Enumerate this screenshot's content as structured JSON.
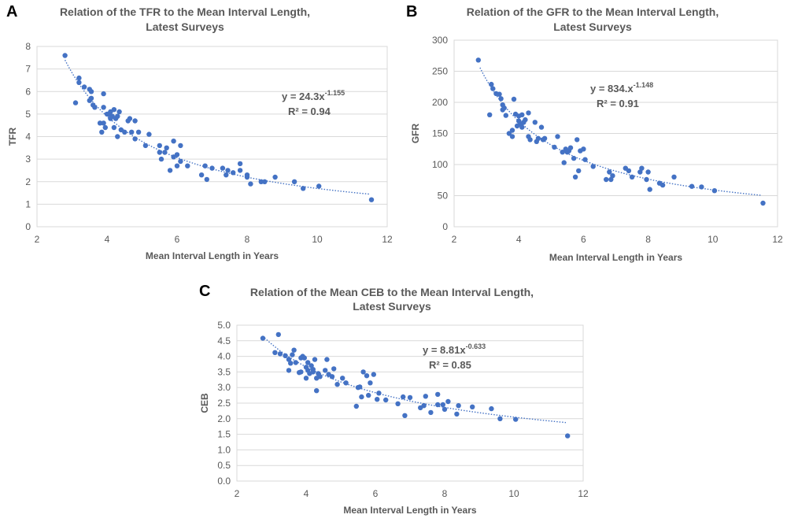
{
  "colors": {
    "marker": "#4472c4",
    "trendline": "#4472c4",
    "grid": "#d9d9d9",
    "text": "#595959"
  },
  "panels": [
    {
      "letter": "A",
      "title_line1": "Relation of the TFR to the Mean Interval Length,",
      "title_line2": "Latest Surveys",
      "xlabel": "Mean Interval Length in Years",
      "ylabel": "TFR",
      "equation": "y = 24.3x",
      "exponent": "-1.155",
      "r2": "R² = 0.94"
    },
    {
      "letter": "B",
      "title_line1": "Relation of the GFR to the Mean Interval Length,",
      "title_line2": "Latest Surveys",
      "xlabel": "Mean Interval Length in Years",
      "ylabel": "GFR",
      "equation": "y = 834.x",
      "exponent": "-1.148",
      "r2": "R² = 0.91"
    },
    {
      "letter": "C",
      "title_line1": "Relation of the Mean CEB to the Mean Interval Length,",
      "title_line2": "Latest Surveys",
      "xlabel": "Mean Interval Length in Years",
      "ylabel": "CEB",
      "equation": "y = 8.81x",
      "exponent": "-0.633",
      "r2": "R² = 0.85"
    }
  ],
  "chart_data": [
    {
      "type": "scatter",
      "title": "Relation of the TFR to the Mean Interval Length, Latest Surveys",
      "xlabel": "Mean Interval Length in Years",
      "ylabel": "TFR",
      "xlim": [
        2,
        12
      ],
      "ylim": [
        0,
        8
      ],
      "xticks": [
        2,
        4,
        6,
        8,
        10,
        12
      ],
      "yticks": [
        0,
        1,
        2,
        3,
        4,
        5,
        6,
        7,
        8
      ],
      "grid": true,
      "trendline": {
        "type": "power",
        "a": 24.3,
        "b": -1.155,
        "x_range": [
          2.8,
          11.5
        ],
        "style": "dotted"
      },
      "annotation": "y = 24.3x-1.155  R² = 0.94",
      "points": [
        [
          2.8,
          7.6
        ],
        [
          3.1,
          5.5
        ],
        [
          3.2,
          6.4
        ],
        [
          3.2,
          6.6
        ],
        [
          3.35,
          6.2
        ],
        [
          3.5,
          6.1
        ],
        [
          3.5,
          5.6
        ],
        [
          3.55,
          6.0
        ],
        [
          3.55,
          5.7
        ],
        [
          3.6,
          5.4
        ],
        [
          3.65,
          5.3
        ],
        [
          3.8,
          4.6
        ],
        [
          3.85,
          4.2
        ],
        [
          3.9,
          4.6
        ],
        [
          3.9,
          5.9
        ],
        [
          3.9,
          5.3
        ],
        [
          3.95,
          4.4
        ],
        [
          4.0,
          5.0
        ],
        [
          4.05,
          5.0
        ],
        [
          4.1,
          4.8
        ],
        [
          4.1,
          5.1
        ],
        [
          4.15,
          4.9
        ],
        [
          4.2,
          4.4
        ],
        [
          4.2,
          5.2
        ],
        [
          4.25,
          4.8
        ],
        [
          4.3,
          4.0
        ],
        [
          4.3,
          4.9
        ],
        [
          4.35,
          5.1
        ],
        [
          4.4,
          4.3
        ],
        [
          4.5,
          4.2
        ],
        [
          4.6,
          4.7
        ],
        [
          4.65,
          4.8
        ],
        [
          4.7,
          4.2
        ],
        [
          4.8,
          4.7
        ],
        [
          4.8,
          3.9
        ],
        [
          4.9,
          4.2
        ],
        [
          5.1,
          3.6
        ],
        [
          5.2,
          4.1
        ],
        [
          5.5,
          3.6
        ],
        [
          5.5,
          3.3
        ],
        [
          5.55,
          3.0
        ],
        [
          5.65,
          3.3
        ],
        [
          5.7,
          3.5
        ],
        [
          5.8,
          2.5
        ],
        [
          5.9,
          3.8
        ],
        [
          5.9,
          3.1
        ],
        [
          6.0,
          2.7
        ],
        [
          6.0,
          3.2
        ],
        [
          6.1,
          3.6
        ],
        [
          6.1,
          2.9
        ],
        [
          6.3,
          2.7
        ],
        [
          6.7,
          2.3
        ],
        [
          6.8,
          2.7
        ],
        [
          6.85,
          2.1
        ],
        [
          7.0,
          2.6
        ],
        [
          7.3,
          2.6
        ],
        [
          7.4,
          2.3
        ],
        [
          7.45,
          2.5
        ],
        [
          7.6,
          2.4
        ],
        [
          7.8,
          2.5
        ],
        [
          7.8,
          2.8
        ],
        [
          8.0,
          2.2
        ],
        [
          8.0,
          2.3
        ],
        [
          8.1,
          1.9
        ],
        [
          8.4,
          2.0
        ],
        [
          8.5,
          2.0
        ],
        [
          8.8,
          2.2
        ],
        [
          9.35,
          2.0
        ],
        [
          9.6,
          1.7
        ],
        [
          10.05,
          1.8
        ],
        [
          11.55,
          1.2
        ]
      ]
    },
    {
      "type": "scatter",
      "title": "Relation of the GFR to the Mean Interval Length, Latest Surveys",
      "xlabel": "Mean Interval Length in Years",
      "ylabel": "GFR",
      "xlim": [
        2,
        12
      ],
      "ylim": [
        0,
        300
      ],
      "xticks": [
        2,
        4,
        6,
        8,
        10,
        12
      ],
      "yticks": [
        0,
        50,
        100,
        150,
        200,
        250,
        300
      ],
      "grid": true,
      "trendline": {
        "type": "power",
        "a": 834,
        "b": -1.148,
        "x_range": [
          2.8,
          11.5
        ],
        "style": "dotted"
      },
      "annotation": "y = 834.x-1.148  R² = 0.91",
      "points": [
        [
          2.75,
          268
        ],
        [
          3.1,
          180
        ],
        [
          3.15,
          229
        ],
        [
          3.2,
          222
        ],
        [
          3.3,
          214
        ],
        [
          3.4,
          213
        ],
        [
          3.45,
          206
        ],
        [
          3.5,
          188
        ],
        [
          3.5,
          196
        ],
        [
          3.55,
          191
        ],
        [
          3.6,
          179
        ],
        [
          3.7,
          150
        ],
        [
          3.8,
          155
        ],
        [
          3.8,
          145
        ],
        [
          3.85,
          205
        ],
        [
          3.9,
          181
        ],
        [
          3.95,
          162
        ],
        [
          4.0,
          170
        ],
        [
          4.0,
          178
        ],
        [
          4.05,
          165
        ],
        [
          4.1,
          160
        ],
        [
          4.1,
          180
        ],
        [
          4.15,
          168
        ],
        [
          4.2,
          172
        ],
        [
          4.3,
          145
        ],
        [
          4.3,
          183
        ],
        [
          4.35,
          140
        ],
        [
          4.5,
          168
        ],
        [
          4.55,
          137
        ],
        [
          4.6,
          142
        ],
        [
          4.7,
          160
        ],
        [
          4.75,
          140
        ],
        [
          4.8,
          142
        ],
        [
          5.1,
          128
        ],
        [
          5.2,
          145
        ],
        [
          5.35,
          120
        ],
        [
          5.4,
          103
        ],
        [
          5.45,
          125
        ],
        [
          5.5,
          120
        ],
        [
          5.55,
          122
        ],
        [
          5.6,
          127
        ],
        [
          5.7,
          110
        ],
        [
          5.75,
          80
        ],
        [
          5.8,
          140
        ],
        [
          5.85,
          90
        ],
        [
          5.9,
          122
        ],
        [
          6.0,
          125
        ],
        [
          6.05,
          108
        ],
        [
          6.3,
          97
        ],
        [
          6.7,
          76
        ],
        [
          6.8,
          88
        ],
        [
          6.85,
          76
        ],
        [
          6.9,
          82
        ],
        [
          7.3,
          94
        ],
        [
          7.4,
          90
        ],
        [
          7.5,
          80
        ],
        [
          7.75,
          88
        ],
        [
          7.8,
          94
        ],
        [
          7.95,
          76
        ],
        [
          8.0,
          88
        ],
        [
          8.05,
          60
        ],
        [
          8.35,
          70
        ],
        [
          8.45,
          67
        ],
        [
          8.8,
          80
        ],
        [
          9.35,
          65
        ],
        [
          9.65,
          64
        ],
        [
          10.05,
          58
        ],
        [
          11.55,
          38
        ]
      ]
    },
    {
      "type": "scatter",
      "title": "Relation of the Mean CEB to the Mean Interval Length, Latest Surveys",
      "xlabel": "Mean Interval Length in Years",
      "ylabel": "CEB",
      "xlim": [
        2,
        12
      ],
      "ylim": [
        0,
        5
      ],
      "xticks": [
        2,
        4,
        6,
        8,
        10,
        12
      ],
      "yticks": [
        0,
        0.5,
        1,
        1.5,
        2,
        2.5,
        3,
        3.5,
        4,
        4.5,
        5
      ],
      "ytick_format": "0.0",
      "grid": true,
      "trendline": {
        "type": "power",
        "a": 8.81,
        "b": -0.633,
        "x_range": [
          2.8,
          11.5
        ],
        "style": "dotted"
      },
      "annotation": "y = 8.81x-0.633  R² = 0.85",
      "points": [
        [
          2.75,
          4.58
        ],
        [
          3.1,
          4.12
        ],
        [
          3.2,
          4.7
        ],
        [
          3.25,
          4.08
        ],
        [
          3.4,
          4.02
        ],
        [
          3.5,
          3.9
        ],
        [
          3.5,
          3.55
        ],
        [
          3.55,
          3.78
        ],
        [
          3.6,
          4.05
        ],
        [
          3.65,
          4.2
        ],
        [
          3.7,
          3.8
        ],
        [
          3.8,
          3.48
        ],
        [
          3.85,
          3.5
        ],
        [
          3.85,
          3.95
        ],
        [
          3.9,
          4.0
        ],
        [
          3.95,
          3.95
        ],
        [
          4.0,
          3.65
        ],
        [
          4.0,
          3.3
        ],
        [
          4.05,
          3.55
        ],
        [
          4.05,
          3.8
        ],
        [
          4.1,
          3.45
        ],
        [
          4.15,
          3.7
        ],
        [
          4.2,
          3.5
        ],
        [
          4.2,
          3.58
        ],
        [
          4.25,
          3.9
        ],
        [
          4.3,
          2.9
        ],
        [
          4.3,
          3.3
        ],
        [
          4.35,
          3.45
        ],
        [
          4.4,
          3.35
        ],
        [
          4.55,
          3.55
        ],
        [
          4.6,
          3.9
        ],
        [
          4.65,
          3.42
        ],
        [
          4.75,
          3.35
        ],
        [
          4.8,
          3.6
        ],
        [
          4.9,
          3.1
        ],
        [
          5.05,
          3.3
        ],
        [
          5.15,
          3.15
        ],
        [
          5.45,
          2.4
        ],
        [
          5.5,
          3.0
        ],
        [
          5.55,
          3.02
        ],
        [
          5.6,
          2.7
        ],
        [
          5.65,
          3.5
        ],
        [
          5.75,
          3.38
        ],
        [
          5.8,
          2.75
        ],
        [
          5.85,
          3.15
        ],
        [
          5.95,
          3.42
        ],
        [
          6.05,
          2.62
        ],
        [
          6.1,
          2.82
        ],
        [
          6.3,
          2.6
        ],
        [
          6.65,
          2.48
        ],
        [
          6.8,
          2.7
        ],
        [
          6.85,
          2.1
        ],
        [
          7.0,
          2.68
        ],
        [
          7.3,
          2.35
        ],
        [
          7.4,
          2.42
        ],
        [
          7.45,
          2.72
        ],
        [
          7.6,
          2.2
        ],
        [
          7.8,
          2.45
        ],
        [
          7.8,
          2.78
        ],
        [
          7.95,
          2.45
        ],
        [
          8.0,
          2.3
        ],
        [
          8.1,
          2.55
        ],
        [
          8.35,
          2.15
        ],
        [
          8.4,
          2.42
        ],
        [
          8.8,
          2.38
        ],
        [
          9.35,
          2.32
        ],
        [
          9.6,
          2.0
        ],
        [
          10.05,
          1.98
        ],
        [
          11.55,
          1.45
        ]
      ]
    }
  ]
}
